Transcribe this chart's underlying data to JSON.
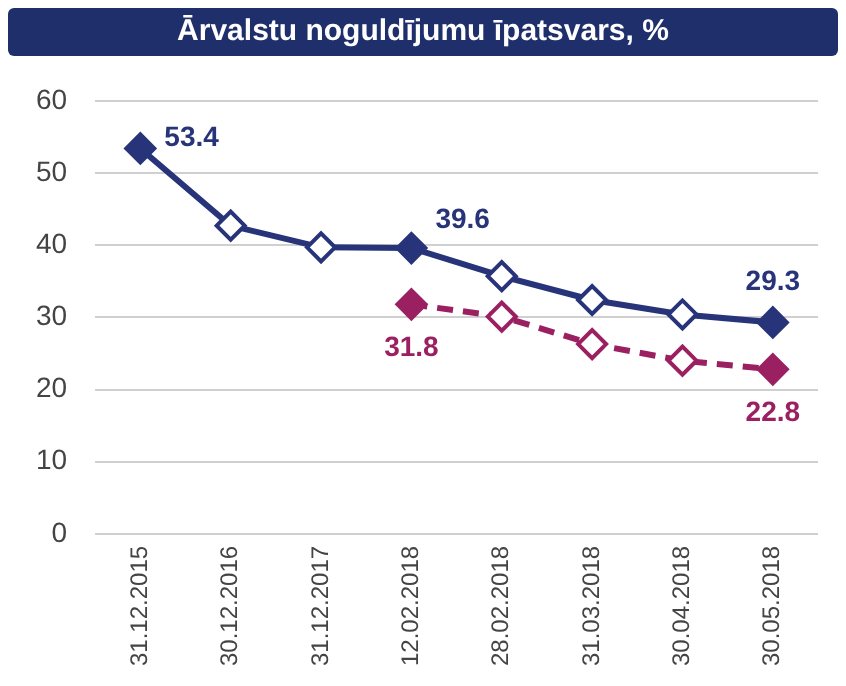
{
  "chart_data": {
    "type": "line",
    "title": "Ārvalstu noguldījumu īpatsvars, %",
    "categories": [
      "31.12.2015",
      "30.12.2016",
      "31.12.2017",
      "12.02.2018",
      "28.02.2018",
      "31.03.2018",
      "30.04.2018",
      "30.05.2018"
    ],
    "series": [
      {
        "color": "#283479",
        "values": [
          53.4,
          42.7,
          39.7,
          39.6,
          35.7,
          32.4,
          30.4,
          29.3
        ],
        "value_labels": [
          "53.4",
          null,
          null,
          "39.6",
          null,
          null,
          null,
          "29.3"
        ],
        "line_style": "solid"
      },
      {
        "color": "#9b2062",
        "values": [
          null,
          null,
          null,
          31.8,
          30.1,
          26.3,
          24.0,
          22.8
        ],
        "value_labels": [
          null,
          null,
          null,
          "31.8",
          null,
          null,
          null,
          "22.8"
        ],
        "line_style": "dashed"
      }
    ],
    "ylim": [
      0,
      60
    ],
    "yticks": [
      0,
      10,
      20,
      30,
      40,
      50,
      60
    ],
    "grid": "y",
    "marker": "diamond",
    "legend": false
  }
}
